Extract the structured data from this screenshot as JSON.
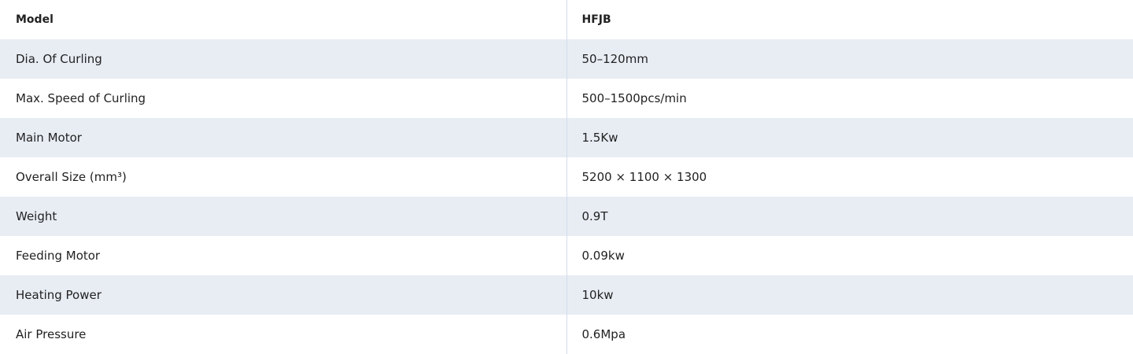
{
  "table": {
    "header": {
      "label": "Model",
      "value": "HFJB"
    },
    "rows": [
      {
        "label": "Dia. Of Curling",
        "value": "50–120mm"
      },
      {
        "label": "Max. Speed of Curling",
        "value": "500–1500pcs/min"
      },
      {
        "label": "Main Motor",
        "value": "1.5Kw"
      },
      {
        "label": "Overall Size (mm³)",
        "value": "5200 × 1100 × 1300"
      },
      {
        "label": "Weight",
        "value": "0.9T"
      },
      {
        "label": "Feeding Motor",
        "value": "0.09kw"
      },
      {
        "label": "Heating Power",
        "value": "10kw"
      },
      {
        "label": "Air Pressure",
        "value": "0.6Mpa"
      }
    ]
  },
  "colors": {
    "stripe": "#e8edf4",
    "divider": "#d3dcea",
    "text": "#222222"
  }
}
